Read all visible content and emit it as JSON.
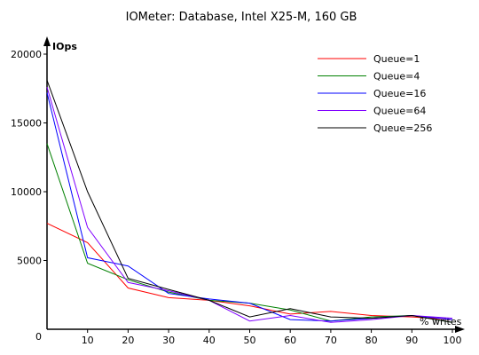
{
  "chart_data": {
    "type": "line",
    "title": "IOMeter: Database, Intel X25-M, 160 GB",
    "xlabel": "% writes",
    "ylabel": "IOps",
    "origin_label": "0",
    "x": [
      0,
      10,
      20,
      30,
      40,
      50,
      60,
      70,
      80,
      90,
      100
    ],
    "x_ticks": [
      "10",
      "20",
      "30",
      "40",
      "50",
      "60",
      "70",
      "80",
      "90",
      "100"
    ],
    "y_ticks": [
      "5000",
      "10000",
      "15000",
      "20000"
    ],
    "y_tick_values": [
      5000,
      10000,
      15000,
      20000
    ],
    "xlim": [
      0,
      100
    ],
    "ylim": [
      0,
      20000
    ],
    "grid": false,
    "legend_position": "top-right",
    "series": [
      {
        "name": "Queue=1",
        "color": "#ff0000",
        "values": [
          7700,
          6300,
          3000,
          2300,
          2100,
          1700,
          1100,
          1300,
          1000,
          900,
          700
        ]
      },
      {
        "name": "Queue=4",
        "color": "#008000",
        "values": [
          13500,
          4800,
          3600,
          2700,
          2100,
          1900,
          1400,
          600,
          900,
          1000,
          500
        ]
      },
      {
        "name": "Queue=16",
        "color": "#0000ff",
        "values": [
          17200,
          5200,
          4600,
          2600,
          2200,
          1900,
          700,
          600,
          800,
          1000,
          700
        ]
      },
      {
        "name": "Queue=64",
        "color": "#8000ff",
        "values": [
          17600,
          7400,
          3400,
          2800,
          2100,
          600,
          1000,
          500,
          700,
          1000,
          800
        ]
      },
      {
        "name": "Queue=256",
        "color": "#000000",
        "values": [
          18100,
          10000,
          3700,
          2900,
          2100,
          900,
          1500,
          900,
          800,
          1000,
          500
        ]
      }
    ]
  }
}
